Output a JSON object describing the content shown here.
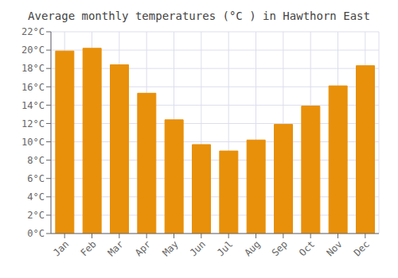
{
  "chart_data": {
    "type": "bar",
    "title": "Average monthly temperatures (°C ) in Hawthorn East",
    "categories": [
      "Jan",
      "Feb",
      "Mar",
      "Apr",
      "May",
      "Jun",
      "Jul",
      "Aug",
      "Sep",
      "Oct",
      "Nov",
      "Dec"
    ],
    "values": [
      19.9,
      20.2,
      18.4,
      15.3,
      12.4,
      9.7,
      9.0,
      10.2,
      11.9,
      13.9,
      16.1,
      18.3
    ],
    "color": "#E8900A",
    "ylim": [
      0,
      22
    ],
    "yticks": [
      {
        "value": 0,
        "label": "0°C"
      },
      {
        "value": 2,
        "label": "2°C"
      },
      {
        "value": 4,
        "label": "4°C"
      },
      {
        "value": 6,
        "label": "6°C"
      },
      {
        "value": 8,
        "label": "8°C"
      },
      {
        "value": 10,
        "label": "10°C"
      },
      {
        "value": 12,
        "label": "12°C"
      },
      {
        "value": 14,
        "label": "14°C"
      },
      {
        "value": 16,
        "label": "16°C"
      },
      {
        "value": 18,
        "label": "18°C"
      },
      {
        "value": 20,
        "label": "20°C"
      },
      {
        "value": 22,
        "label": "22°C"
      }
    ],
    "grid": true
  }
}
